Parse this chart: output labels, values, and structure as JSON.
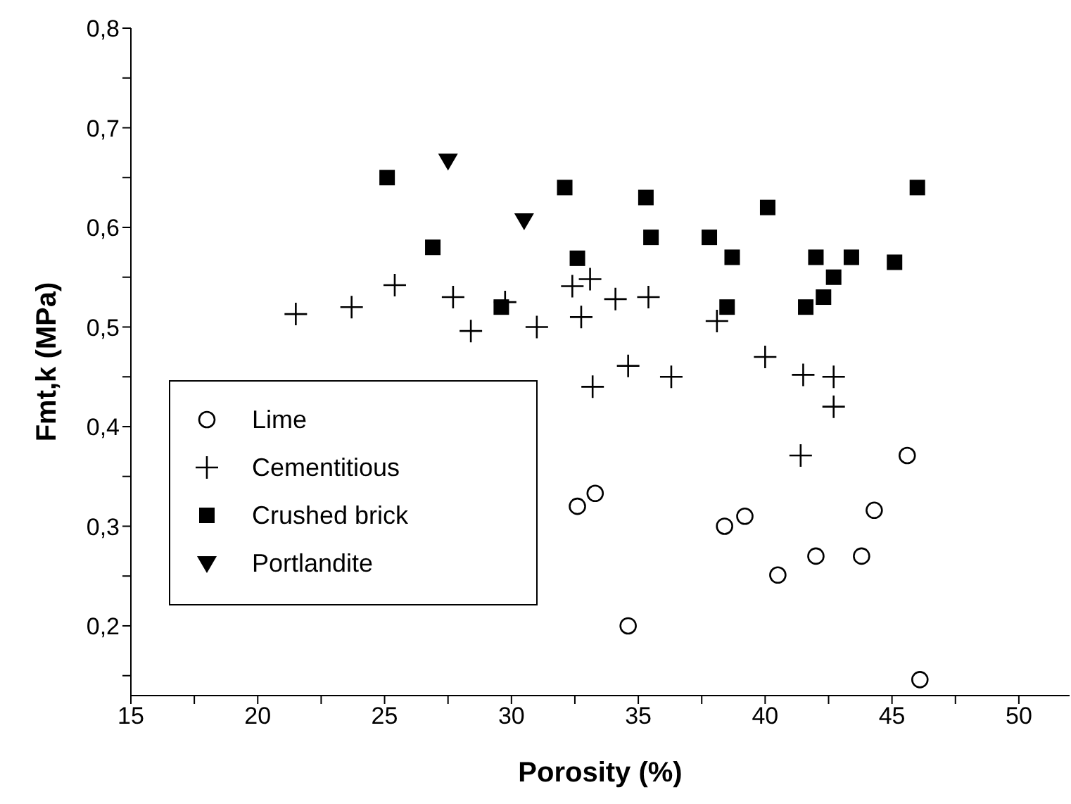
{
  "chart_data": {
    "type": "scatter",
    "xlabel": "Porosity (%)",
    "ylabel": "Fmt,k (MPa)",
    "xlim": [
      15,
      52
    ],
    "ylim": [
      0.13,
      0.8
    ],
    "xticks": [
      15,
      {
        "value": 17.5,
        "label": null
      },
      20,
      {
        "value": 22.5,
        "label": null
      },
      25,
      {
        "value": 27.5,
        "label": null
      },
      30,
      {
        "value": 32.5,
        "label": null
      },
      35,
      {
        "value": 37.5,
        "label": null
      },
      40,
      {
        "value": 42.5,
        "label": null
      },
      45,
      {
        "value": 47.5,
        "label": null
      },
      50
    ],
    "yticks": [
      {
        "value": 0.15,
        "label": null
      },
      {
        "value": 0.2,
        "label": "0,2"
      },
      {
        "value": 0.25,
        "label": null
      },
      {
        "value": 0.3,
        "label": "0,3"
      },
      {
        "value": 0.35,
        "label": null
      },
      {
        "value": 0.4,
        "label": "0,4"
      },
      {
        "value": 0.45,
        "label": null
      },
      {
        "value": 0.5,
        "label": "0,5"
      },
      {
        "value": 0.55,
        "label": null
      },
      {
        "value": 0.6,
        "label": "0,6"
      },
      {
        "value": 0.65,
        "label": null
      },
      {
        "value": 0.7,
        "label": "0,7"
      },
      {
        "value": 0.75,
        "label": null
      },
      {
        "value": 0.8,
        "label": "0,8"
      }
    ],
    "legend": "left",
    "grid": false,
    "series": [
      {
        "name": "Lime",
        "color": "#000000",
        "marker": "circle",
        "x": [
          32.6,
          33.3,
          34.6,
          38.4,
          39.2,
          40.5,
          42.0,
          43.8,
          44.3,
          45.6,
          46.1
        ],
        "values": [
          0.32,
          0.333,
          0.2,
          0.3,
          0.31,
          0.251,
          0.27,
          0.27,
          0.316,
          0.371,
          0.146
        ]
      },
      {
        "name": "Cementitious",
        "color": "#000000",
        "marker": "cross",
        "x": [
          21.5,
          23.7,
          25.4,
          27.7,
          28.4,
          29.75,
          31.0,
          32.4,
          33.1,
          32.75,
          33.2,
          34.1,
          35.4,
          38.1,
          34.6,
          36.3,
          40.0,
          41.5,
          42.7,
          42.7,
          41.4
        ],
        "values": [
          0.513,
          0.52,
          0.542,
          0.53,
          0.496,
          0.525,
          0.5,
          0.541,
          0.548,
          0.51,
          0.44,
          0.528,
          0.53,
          0.506,
          0.461,
          0.45,
          0.47,
          0.452,
          0.45,
          0.42,
          0.371
        ]
      },
      {
        "name": "Crushed brick",
        "color": "#000000",
        "marker": "square",
        "x": [
          25.1,
          26.9,
          29.6,
          32.1,
          32.6,
          35.3,
          35.5,
          37.8,
          38.7,
          40.1,
          38.5,
          42.0,
          43.4,
          42.7,
          42.3,
          41.6,
          45.1,
          46.0
        ],
        "values": [
          0.65,
          0.58,
          0.52,
          0.64,
          0.569,
          0.63,
          0.59,
          0.59,
          0.57,
          0.62,
          0.52,
          0.57,
          0.57,
          0.55,
          0.53,
          0.52,
          0.565,
          0.64
        ]
      },
      {
        "name": "Portlandite",
        "color": "#000000",
        "marker": "triangle",
        "x": [
          27.5,
          30.5
        ],
        "values": [
          0.667,
          0.607
        ]
      }
    ]
  }
}
